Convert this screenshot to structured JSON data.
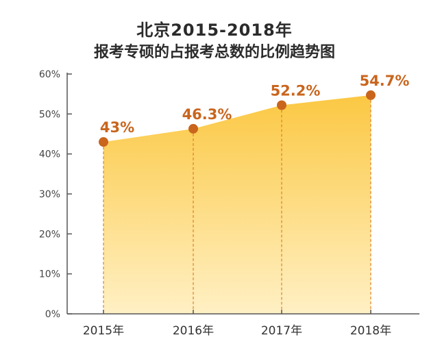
{
  "chart_data": {
    "type": "area",
    "title": "北京2015-2018年",
    "subtitle": "报考专硕的占报考总数的比例趋势图",
    "categories": [
      "2015年",
      "2016年",
      "2017年",
      "2018年"
    ],
    "values": [
      43,
      46.3,
      52.2,
      54.7
    ],
    "data_labels": [
      "43%",
      "46.3%",
      "52.2%",
      "54.7%"
    ],
    "y_ticks": [
      "0%",
      "10%",
      "20%",
      "30%",
      "40%",
      "50%",
      "60%"
    ],
    "ylim": [
      0,
      60
    ],
    "grid": false,
    "colors": {
      "fill_top": "#fbc843",
      "fill_bottom": "#fff0c4",
      "marker": "#c9651d",
      "guide": "#d9822b",
      "axis": "#555555",
      "label": "#c9651d"
    }
  }
}
